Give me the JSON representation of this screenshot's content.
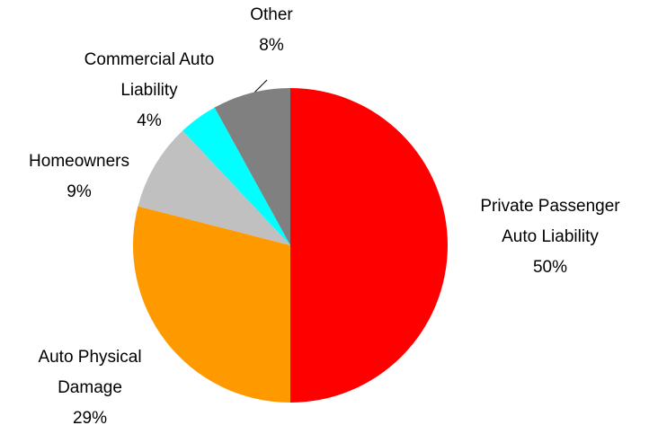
{
  "chart_data": {
    "type": "pie",
    "categories": [
      "Private Passenger Auto Liability",
      "Auto Physical Damage",
      "Homeowners",
      "Commercial Auto Liability",
      "Other"
    ],
    "values": [
      50,
      29,
      9,
      4,
      8
    ],
    "value_labels": [
      "50%",
      "29%",
      "9%",
      "4%",
      "8%"
    ],
    "colors": [
      "#ff0000",
      "#ff9900",
      "#c0c0c0",
      "#00ffff",
      "#808080"
    ]
  }
}
